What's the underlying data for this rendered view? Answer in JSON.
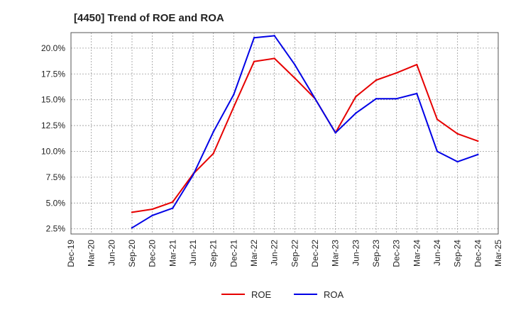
{
  "chart_data": {
    "type": "line",
    "title": "[4450]  Trend of ROE and ROA",
    "xlabel": "",
    "ylabel": "",
    "x": [
      "Dec-19",
      "Mar-20",
      "Jun-20",
      "Sep-20",
      "Dec-20",
      "Mar-21",
      "Jun-21",
      "Sep-21",
      "Dec-21",
      "Mar-22",
      "Jun-22",
      "Sep-22",
      "Dec-22",
      "Mar-23",
      "Jun-23",
      "Sep-23",
      "Dec-23",
      "Mar-24",
      "Jun-24",
      "Sep-24",
      "Dec-24",
      "Mar-25"
    ],
    "ylim": [
      2.0,
      21.5
    ],
    "yticks": [
      2.5,
      5.0,
      7.5,
      10.0,
      12.5,
      15.0,
      17.5,
      20.0
    ],
    "ytick_labels": [
      "2.5%",
      "5.0%",
      "7.5%",
      "10.0%",
      "12.5%",
      "15.0%",
      "17.5%",
      "20.0%"
    ],
    "grid": true,
    "legend_position": "bottom-center",
    "series": [
      {
        "name": "ROE",
        "color": "#e60000",
        "values": [
          null,
          null,
          null,
          4.1,
          4.4,
          5.1,
          7.8,
          9.8,
          14.3,
          18.7,
          19.0,
          17.1,
          15.1,
          11.8,
          15.3,
          16.9,
          17.6,
          18.4,
          13.1,
          11.7,
          11.0,
          null
        ]
      },
      {
        "name": "ROA",
        "color": "#0000e6",
        "values": [
          null,
          null,
          null,
          2.6,
          3.8,
          4.5,
          7.7,
          11.9,
          15.5,
          21.0,
          21.2,
          18.4,
          15.1,
          11.8,
          13.7,
          15.1,
          15.1,
          15.6,
          10.0,
          9.0,
          9.7,
          null
        ]
      }
    ]
  }
}
